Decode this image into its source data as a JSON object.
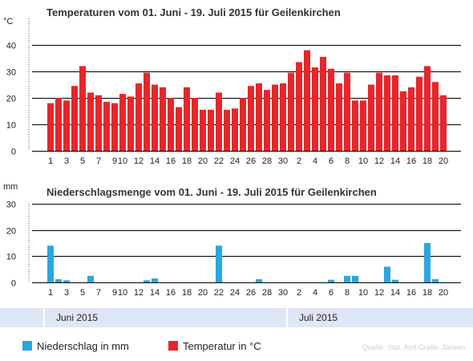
{
  "chart_data": [
    {
      "type": "bar",
      "title": "Temperaturen vom 01. Juni - 19. Juli 2015 für Geilenkirchen",
      "unit_label": "°C",
      "ylim": [
        0,
        50
      ],
      "yticks": [
        0,
        10,
        20,
        30,
        40
      ],
      "grid": true,
      "color": "#e8252b",
      "series": [
        {
          "name": "Temperatur in °C",
          "values": [
            18,
            20,
            19,
            24.5,
            32,
            22,
            21,
            18.5,
            18,
            21.5,
            20.5,
            25.5,
            29.5,
            25,
            24,
            20,
            16.5,
            24,
            20,
            15.5,
            15.5,
            22,
            15.5,
            16,
            20,
            24.5,
            25.5,
            23,
            25,
            25.5,
            29.5,
            33.5,
            38,
            31.5,
            35.5,
            31,
            25.5,
            29.5,
            19,
            19,
            25,
            29.5,
            28.5,
            28.5,
            22.5,
            24,
            28,
            32,
            26,
            21
          ]
        }
      ]
    },
    {
      "type": "bar",
      "title": "Niederschlagsmenge vom 01. Juni - 19. Juli 2015 für Geilenkirchen",
      "unit_label": "mm",
      "ylim": [
        0,
        30
      ],
      "yticks": [
        0,
        10,
        20,
        30
      ],
      "grid": true,
      "color": "#2aa7e0",
      "series": [
        {
          "name": "Niederschlag in mm",
          "values": [
            14,
            1.2,
            0.8,
            0,
            0,
            2.5,
            0,
            0,
            0,
            0,
            0,
            0,
            0.8,
            1.5,
            0,
            0,
            0,
            0,
            0,
            0,
            0,
            14,
            0,
            0,
            0,
            0,
            1.2,
            0,
            0,
            0,
            0,
            0,
            0,
            0,
            0,
            1,
            0,
            2.5,
            2.5,
            0,
            0,
            0,
            6,
            1,
            0,
            0,
            0,
            15,
            1.2,
            0
          ]
        }
      ]
    }
  ],
  "x_tick_labels": [
    "1",
    "3",
    "5",
    "7",
    "9",
    "10",
    "12",
    "14",
    "16",
    "18",
    "20",
    "22",
    "24",
    "26",
    "28",
    "30",
    "2",
    "4",
    "6",
    "8",
    "10",
    "12",
    "14",
    "16",
    "18",
    "20"
  ],
  "months": [
    {
      "label": "Juni 2015"
    },
    {
      "label": "Juli 2015"
    }
  ],
  "legend": [
    {
      "label": "Niederschlag in mm",
      "color": "#2aa7e0"
    },
    {
      "label": "Temperatur in °C",
      "color": "#e8252b"
    }
  ],
  "source": "Quelle: Stat. Amt  Grafik: Jansen"
}
